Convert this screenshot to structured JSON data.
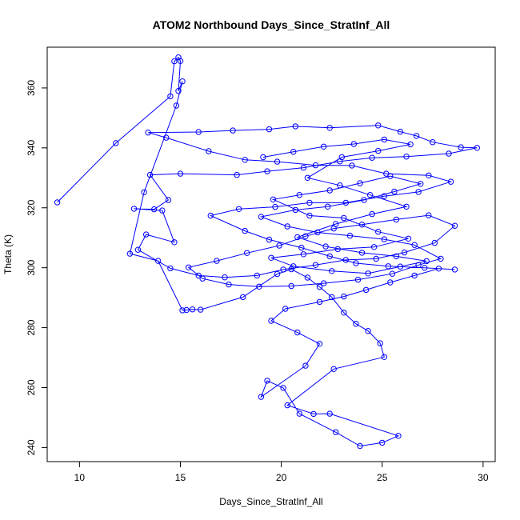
{
  "chart_data": {
    "type": "scatter",
    "title": "ATOM2 Northbound Days_Since_StratInf_All",
    "xlabel": "Days_Since_StratInf_All",
    "ylabel": "Theta (K)",
    "xlim": [
      8.4,
      30.6
    ],
    "ylim": [
      235.3,
      373.6
    ],
    "xticks": [
      10,
      15,
      20,
      25,
      30
    ],
    "yticks": [
      240,
      260,
      280,
      300,
      320,
      340,
      360
    ],
    "grid": false,
    "legend": "none",
    "series_color": "#0000ff",
    "marker": "open-circle",
    "connect_points": true,
    "series": [
      {
        "points": [
          [
            8.9,
            321.8
          ],
          [
            11.8,
            341.6
          ],
          [
            14.5,
            357.2
          ],
          [
            14.7,
            368.9
          ],
          [
            14.9,
            370.2
          ],
          [
            15.0,
            369.0
          ],
          [
            14.9,
            359.0
          ],
          [
            15.1,
            362.2
          ],
          [
            14.8,
            354.1
          ],
          [
            13.2,
            325.2
          ],
          [
            12.5,
            304.7
          ],
          [
            13.9,
            302.3
          ],
          [
            15.1,
            285.8
          ],
          [
            15.3,
            285.9
          ],
          [
            15.6,
            286.1
          ],
          [
            16.0,
            286.0
          ],
          [
            18.1,
            290.2
          ],
          [
            19.8,
            297.9
          ],
          [
            20.5,
            299.5
          ],
          [
            21.3,
            296.7
          ],
          [
            21.9,
            293.6
          ],
          [
            22.5,
            290.2
          ],
          [
            23.1,
            285.0
          ],
          [
            23.7,
            281.3
          ],
          [
            24.3,
            278.9
          ],
          [
            24.9,
            274.8
          ],
          [
            25.1,
            270.2
          ],
          [
            22.6,
            266.2
          ],
          [
            20.3,
            254.1
          ],
          [
            21.6,
            251.2
          ],
          [
            22.4,
            251.3
          ],
          [
            25.8,
            243.9
          ],
          [
            25.0,
            241.6
          ],
          [
            23.9,
            240.5
          ],
          [
            22.7,
            245.1
          ],
          [
            20.9,
            251.3
          ],
          [
            20.1,
            259.9
          ],
          [
            19.3,
            262.3
          ],
          [
            19.0,
            256.9
          ],
          [
            21.2,
            267.3
          ],
          [
            21.9,
            274.6
          ],
          [
            20.8,
            278.4
          ],
          [
            19.5,
            282.3
          ],
          [
            20.2,
            286.3
          ],
          [
            21.9,
            288.6
          ],
          [
            23.1,
            290.4
          ],
          [
            24.2,
            292.6
          ],
          [
            25.4,
            295.1
          ],
          [
            26.6,
            297.4
          ],
          [
            27.8,
            299.7
          ],
          [
            28.6,
            299.4
          ],
          [
            27.1,
            300.0
          ],
          [
            25.3,
            300.5
          ],
          [
            23.7,
            301.5
          ],
          [
            22.4,
            303.8
          ],
          [
            21.0,
            306.7
          ],
          [
            19.4,
            309.4
          ],
          [
            18.2,
            312.3
          ],
          [
            16.5,
            317.4
          ],
          [
            17.9,
            319.6
          ],
          [
            19.7,
            320.3
          ],
          [
            21.4,
            321.7
          ],
          [
            23.2,
            321.7
          ],
          [
            25.1,
            323.9
          ],
          [
            26.8,
            325.3
          ],
          [
            28.4,
            328.7
          ],
          [
            27.3,
            330.8
          ],
          [
            25.2,
            331.4
          ],
          [
            23.5,
            334.1
          ],
          [
            21.7,
            334.2
          ],
          [
            19.8,
            335.4
          ],
          [
            18.2,
            336.0
          ],
          [
            16.4,
            338.9
          ],
          [
            14.3,
            343.4
          ],
          [
            13.4,
            345.1
          ],
          [
            15.9,
            345.3
          ],
          [
            17.6,
            345.8
          ],
          [
            19.4,
            346.2
          ],
          [
            20.7,
            347.2
          ],
          [
            22.4,
            346.7
          ],
          [
            24.8,
            347.5
          ],
          [
            25.9,
            345.4
          ],
          [
            26.7,
            344.0
          ],
          [
            27.5,
            341.9
          ],
          [
            28.9,
            340.2
          ],
          [
            29.7,
            340.0
          ],
          [
            28.3,
            338.1
          ],
          [
            26.2,
            337.1
          ],
          [
            24.5,
            336.7
          ],
          [
            22.9,
            335.5
          ],
          [
            21.1,
            333.4
          ],
          [
            19.3,
            332.2
          ],
          [
            17.8,
            331.0
          ],
          [
            15.0,
            331.4
          ],
          [
            13.5,
            331.0
          ],
          [
            14.4,
            322.6
          ],
          [
            13.7,
            319.5
          ],
          [
            12.7,
            319.7
          ],
          [
            14.1,
            319.1
          ],
          [
            14.7,
            308.5
          ],
          [
            13.3,
            311.1
          ],
          [
            12.9,
            306.0
          ],
          [
            14.5,
            299.8
          ],
          [
            15.9,
            297.4
          ],
          [
            17.2,
            296.8
          ],
          [
            18.8,
            297.4
          ],
          [
            20.1,
            299.4
          ],
          [
            21.7,
            300.9
          ],
          [
            23.2,
            302.6
          ],
          [
            24.7,
            303.0
          ],
          [
            26.1,
            305.1
          ],
          [
            27.6,
            308.3
          ],
          [
            28.6,
            314.0
          ],
          [
            27.3,
            317.5
          ],
          [
            25.7,
            316.1
          ],
          [
            24.0,
            314.4
          ],
          [
            22.6,
            313.1
          ],
          [
            21.2,
            310.5
          ],
          [
            19.9,
            307.4
          ],
          [
            18.3,
            304.9
          ],
          [
            16.8,
            302.3
          ],
          [
            15.4,
            300.1
          ],
          [
            16.1,
            296.4
          ],
          [
            17.4,
            294.4
          ],
          [
            18.9,
            293.7
          ],
          [
            20.5,
            293.9
          ],
          [
            22.1,
            294.8
          ],
          [
            23.8,
            296.0
          ],
          [
            25.5,
            298.0
          ],
          [
            26.8,
            300.9
          ],
          [
            27.9,
            303.0
          ],
          [
            26.6,
            307.6
          ],
          [
            25.1,
            309.5
          ],
          [
            23.4,
            310.7
          ],
          [
            21.8,
            311.8
          ],
          [
            20.3,
            313.8
          ],
          [
            19.0,
            317.0
          ],
          [
            20.7,
            319.3
          ],
          [
            22.3,
            320.4
          ],
          [
            24.1,
            322.6
          ],
          [
            25.6,
            325.4
          ],
          [
            26.9,
            328.0
          ],
          [
            25.4,
            330.6
          ],
          [
            23.9,
            328.2
          ],
          [
            22.4,
            325.8
          ],
          [
            20.9,
            324.3
          ],
          [
            19.6,
            322.8
          ],
          [
            21.4,
            317.4
          ],
          [
            23.1,
            316.6
          ],
          [
            24.8,
            312.0
          ],
          [
            26.3,
            309.7
          ],
          [
            24.6,
            306.9
          ],
          [
            22.8,
            306.2
          ],
          [
            21.1,
            304.5
          ],
          [
            19.5,
            303.3
          ],
          [
            20.6,
            300.5
          ],
          [
            22.5,
            298.9
          ],
          [
            24.3,
            298.1
          ],
          [
            25.9,
            300.4
          ],
          [
            27.2,
            302.2
          ],
          [
            25.7,
            303.8
          ],
          [
            24.0,
            305.0
          ],
          [
            22.2,
            307.1
          ],
          [
            20.8,
            310.2
          ],
          [
            22.7,
            314.6
          ],
          [
            24.5,
            317.9
          ],
          [
            26.2,
            320.4
          ],
          [
            24.4,
            324.3
          ],
          [
            22.9,
            327.5
          ],
          [
            21.3,
            330.0
          ],
          [
            23.0,
            336.9
          ],
          [
            24.8,
            339.0
          ],
          [
            26.4,
            341.2
          ],
          [
            25.1,
            342.8
          ],
          [
            23.6,
            341.3
          ],
          [
            22.1,
            340.4
          ],
          [
            20.6,
            338.7
          ],
          [
            19.1,
            336.9
          ]
        ]
      }
    ]
  }
}
